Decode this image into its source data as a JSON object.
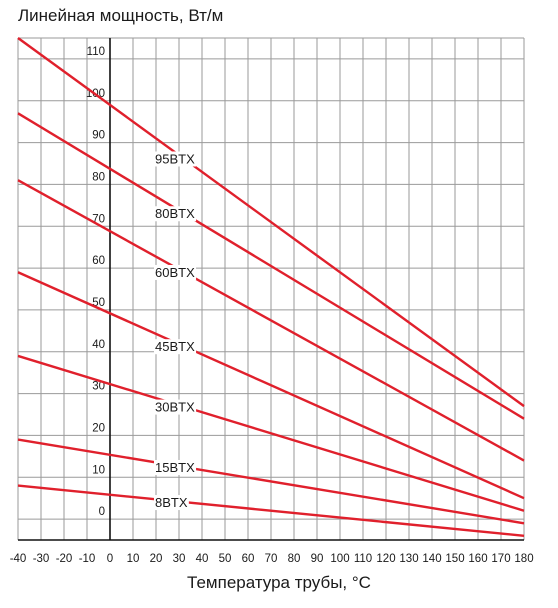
{
  "chart_data": {
    "type": "line",
    "title": "",
    "ylabel": "Линейная мощность, Вт/м",
    "xlabel": "Температура трубы, °С",
    "xlim": [
      -40,
      180
    ],
    "ylim": [
      -5,
      115
    ],
    "x_ticks": [
      "-40",
      "-30",
      "-20",
      "-10",
      "0",
      "10",
      "20",
      "30",
      "40",
      "50",
      "60",
      "70",
      "80",
      "90",
      "100",
      "110",
      "120",
      "130",
      "140",
      "150",
      "160",
      "170",
      "180"
    ],
    "y_ticks": [
      "0",
      "10",
      "20",
      "30",
      "40",
      "50",
      "60",
      "70",
      "80",
      "90",
      "100",
      "110"
    ],
    "grid": true,
    "series_color": "#e0202c",
    "series": [
      {
        "name": "95BTX",
        "x": [
          -40,
          180
        ],
        "y": [
          115,
          27
        ]
      },
      {
        "name": "80BTX",
        "x": [
          -40,
          180
        ],
        "y": [
          97,
          24
        ]
      },
      {
        "name": "60BTX",
        "x": [
          -40,
          180
        ],
        "y": [
          81,
          14
        ]
      },
      {
        "name": "45BTX",
        "x": [
          -40,
          180
        ],
        "y": [
          59,
          5
        ]
      },
      {
        "name": "30BTX",
        "x": [
          -40,
          180
        ],
        "y": [
          39,
          2
        ]
      },
      {
        "name": "15BTX",
        "x": [
          -40,
          180
        ],
        "y": [
          19,
          -1
        ]
      },
      {
        "name": "8BTX",
        "x": [
          -40,
          180
        ],
        "y": [
          8,
          -4
        ]
      }
    ]
  }
}
